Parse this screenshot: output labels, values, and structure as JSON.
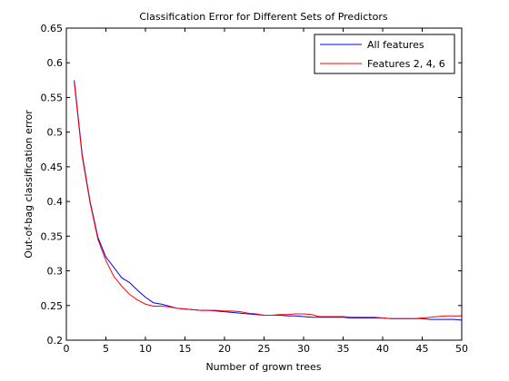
{
  "chart_data": {
    "type": "line",
    "title": "Classification Error for Different Sets of Predictors",
    "xlabel": "Number of grown trees",
    "ylabel": "Out-of-bag classification error",
    "xlim": [
      0,
      50
    ],
    "ylim": [
      0.2,
      0.65
    ],
    "xticks": [
      0,
      5,
      10,
      15,
      20,
      25,
      30,
      35,
      40,
      45,
      50
    ],
    "yticks": [
      0.2,
      0.25,
      0.3,
      0.35,
      0.4,
      0.45,
      0.5,
      0.55,
      0.6,
      0.65
    ],
    "legend_position": "top-right",
    "grid": false,
    "x": [
      1,
      2,
      3,
      4,
      5,
      6,
      7,
      8,
      9,
      10,
      11,
      12,
      13,
      14,
      15,
      16,
      17,
      18,
      19,
      20,
      21,
      22,
      23,
      24,
      25,
      26,
      27,
      28,
      29,
      30,
      31,
      32,
      33,
      34,
      35,
      36,
      37,
      38,
      39,
      40,
      41,
      42,
      43,
      44,
      45,
      46,
      47,
      48,
      49,
      50
    ],
    "series": [
      {
        "name": "All features",
        "color": "#0000ff",
        "values": [
          0.575,
          0.468,
          0.4,
          0.348,
          0.32,
          0.305,
          0.29,
          0.283,
          0.272,
          0.262,
          0.254,
          0.252,
          0.249,
          0.246,
          0.245,
          0.244,
          0.243,
          0.243,
          0.242,
          0.241,
          0.24,
          0.239,
          0.238,
          0.237,
          0.236,
          0.236,
          0.236,
          0.235,
          0.235,
          0.234,
          0.233,
          0.233,
          0.233,
          0.233,
          0.233,
          0.232,
          0.232,
          0.232,
          0.232,
          0.232,
          0.231,
          0.231,
          0.231,
          0.231,
          0.231,
          0.23,
          0.23,
          0.23,
          0.23,
          0.229
        ]
      },
      {
        "name": "Features 2, 4, 6",
        "color": "#ff0000",
        "values": [
          0.572,
          0.465,
          0.398,
          0.345,
          0.315,
          0.292,
          0.278,
          0.266,
          0.258,
          0.252,
          0.249,
          0.249,
          0.248,
          0.246,
          0.245,
          0.244,
          0.243,
          0.243,
          0.243,
          0.242,
          0.242,
          0.241,
          0.239,
          0.238,
          0.236,
          0.236,
          0.237,
          0.237,
          0.238,
          0.238,
          0.237,
          0.234,
          0.234,
          0.234,
          0.234,
          0.233,
          0.233,
          0.233,
          0.233,
          0.232,
          0.231,
          0.231,
          0.231,
          0.231,
          0.232,
          0.233,
          0.234,
          0.235,
          0.235,
          0.235
        ]
      }
    ]
  }
}
